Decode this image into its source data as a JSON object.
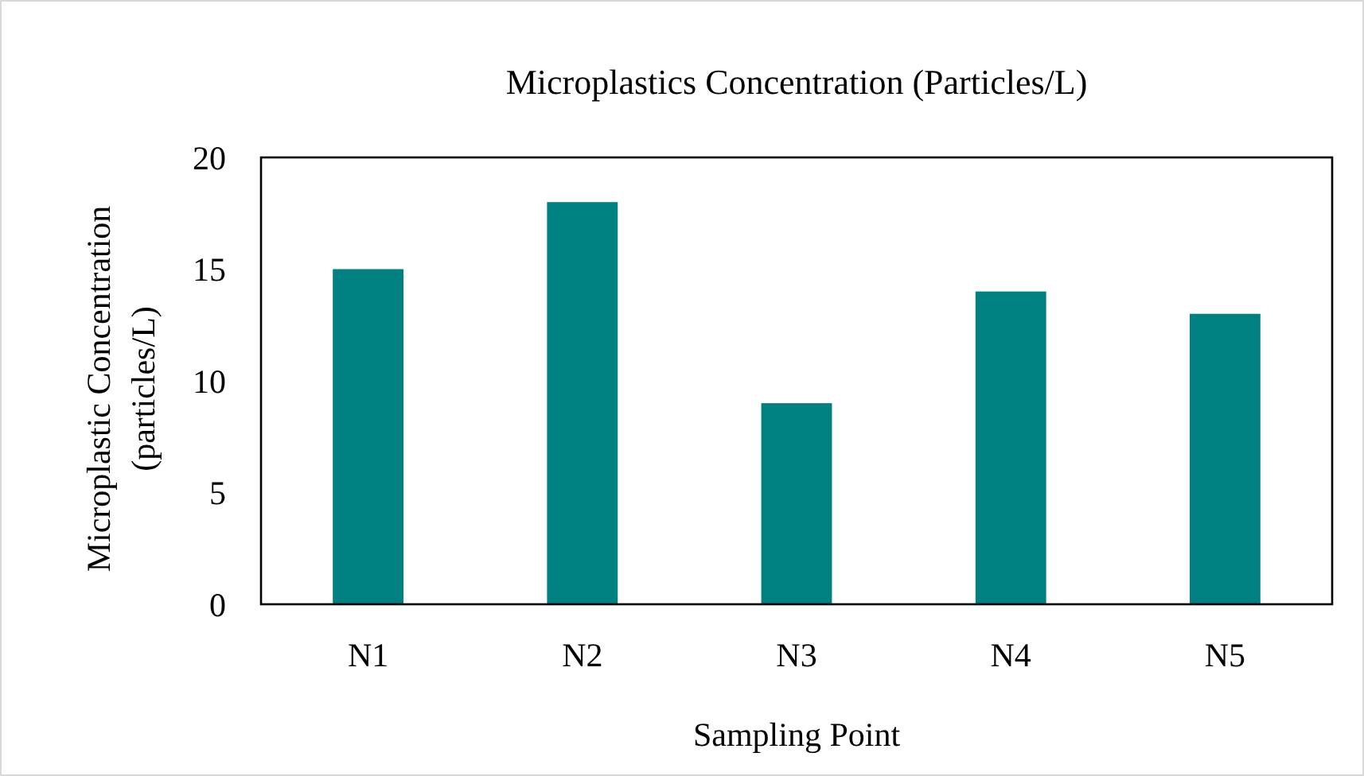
{
  "chart_data": {
    "type": "bar",
    "title": "Microplastics Concentration (Particles/L)",
    "xlabel": "Sampling Point",
    "ylabel": "Microplastic Concentration (particles/L)",
    "categories": [
      "N1",
      "N2",
      "N3",
      "N4",
      "N5"
    ],
    "values": [
      15,
      18,
      9,
      14,
      13
    ],
    "color": "#008080",
    "ylim": [
      0,
      20
    ],
    "yticks": [
      0,
      5,
      10,
      15,
      20
    ],
    "grid": false
  }
}
